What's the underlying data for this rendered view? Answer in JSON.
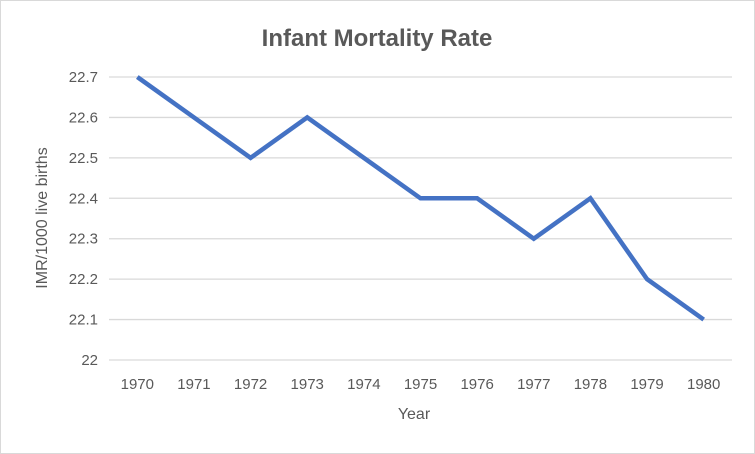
{
  "chart_data": {
    "type": "line",
    "title": "Infant Mortality Rate",
    "xlabel": "Year",
    "ylabel": "IMR/1000 live births",
    "categories": [
      "1970",
      "1971",
      "1972",
      "1973",
      "1974",
      "1975",
      "1976",
      "1977",
      "1978",
      "1979",
      "1980"
    ],
    "series": [
      {
        "values": [
          22.7,
          22.6,
          22.5,
          22.6,
          22.5,
          22.4,
          22.4,
          22.3,
          22.4,
          22.2,
          22.1
        ],
        "color": "#4472C4"
      }
    ],
    "yticks": [
      "22",
      "22.1",
      "22.2",
      "22.3",
      "22.4",
      "22.5",
      "22.6",
      "22.7"
    ],
    "ylim": [
      22,
      22.7
    ],
    "grid": true,
    "legend": "none"
  }
}
